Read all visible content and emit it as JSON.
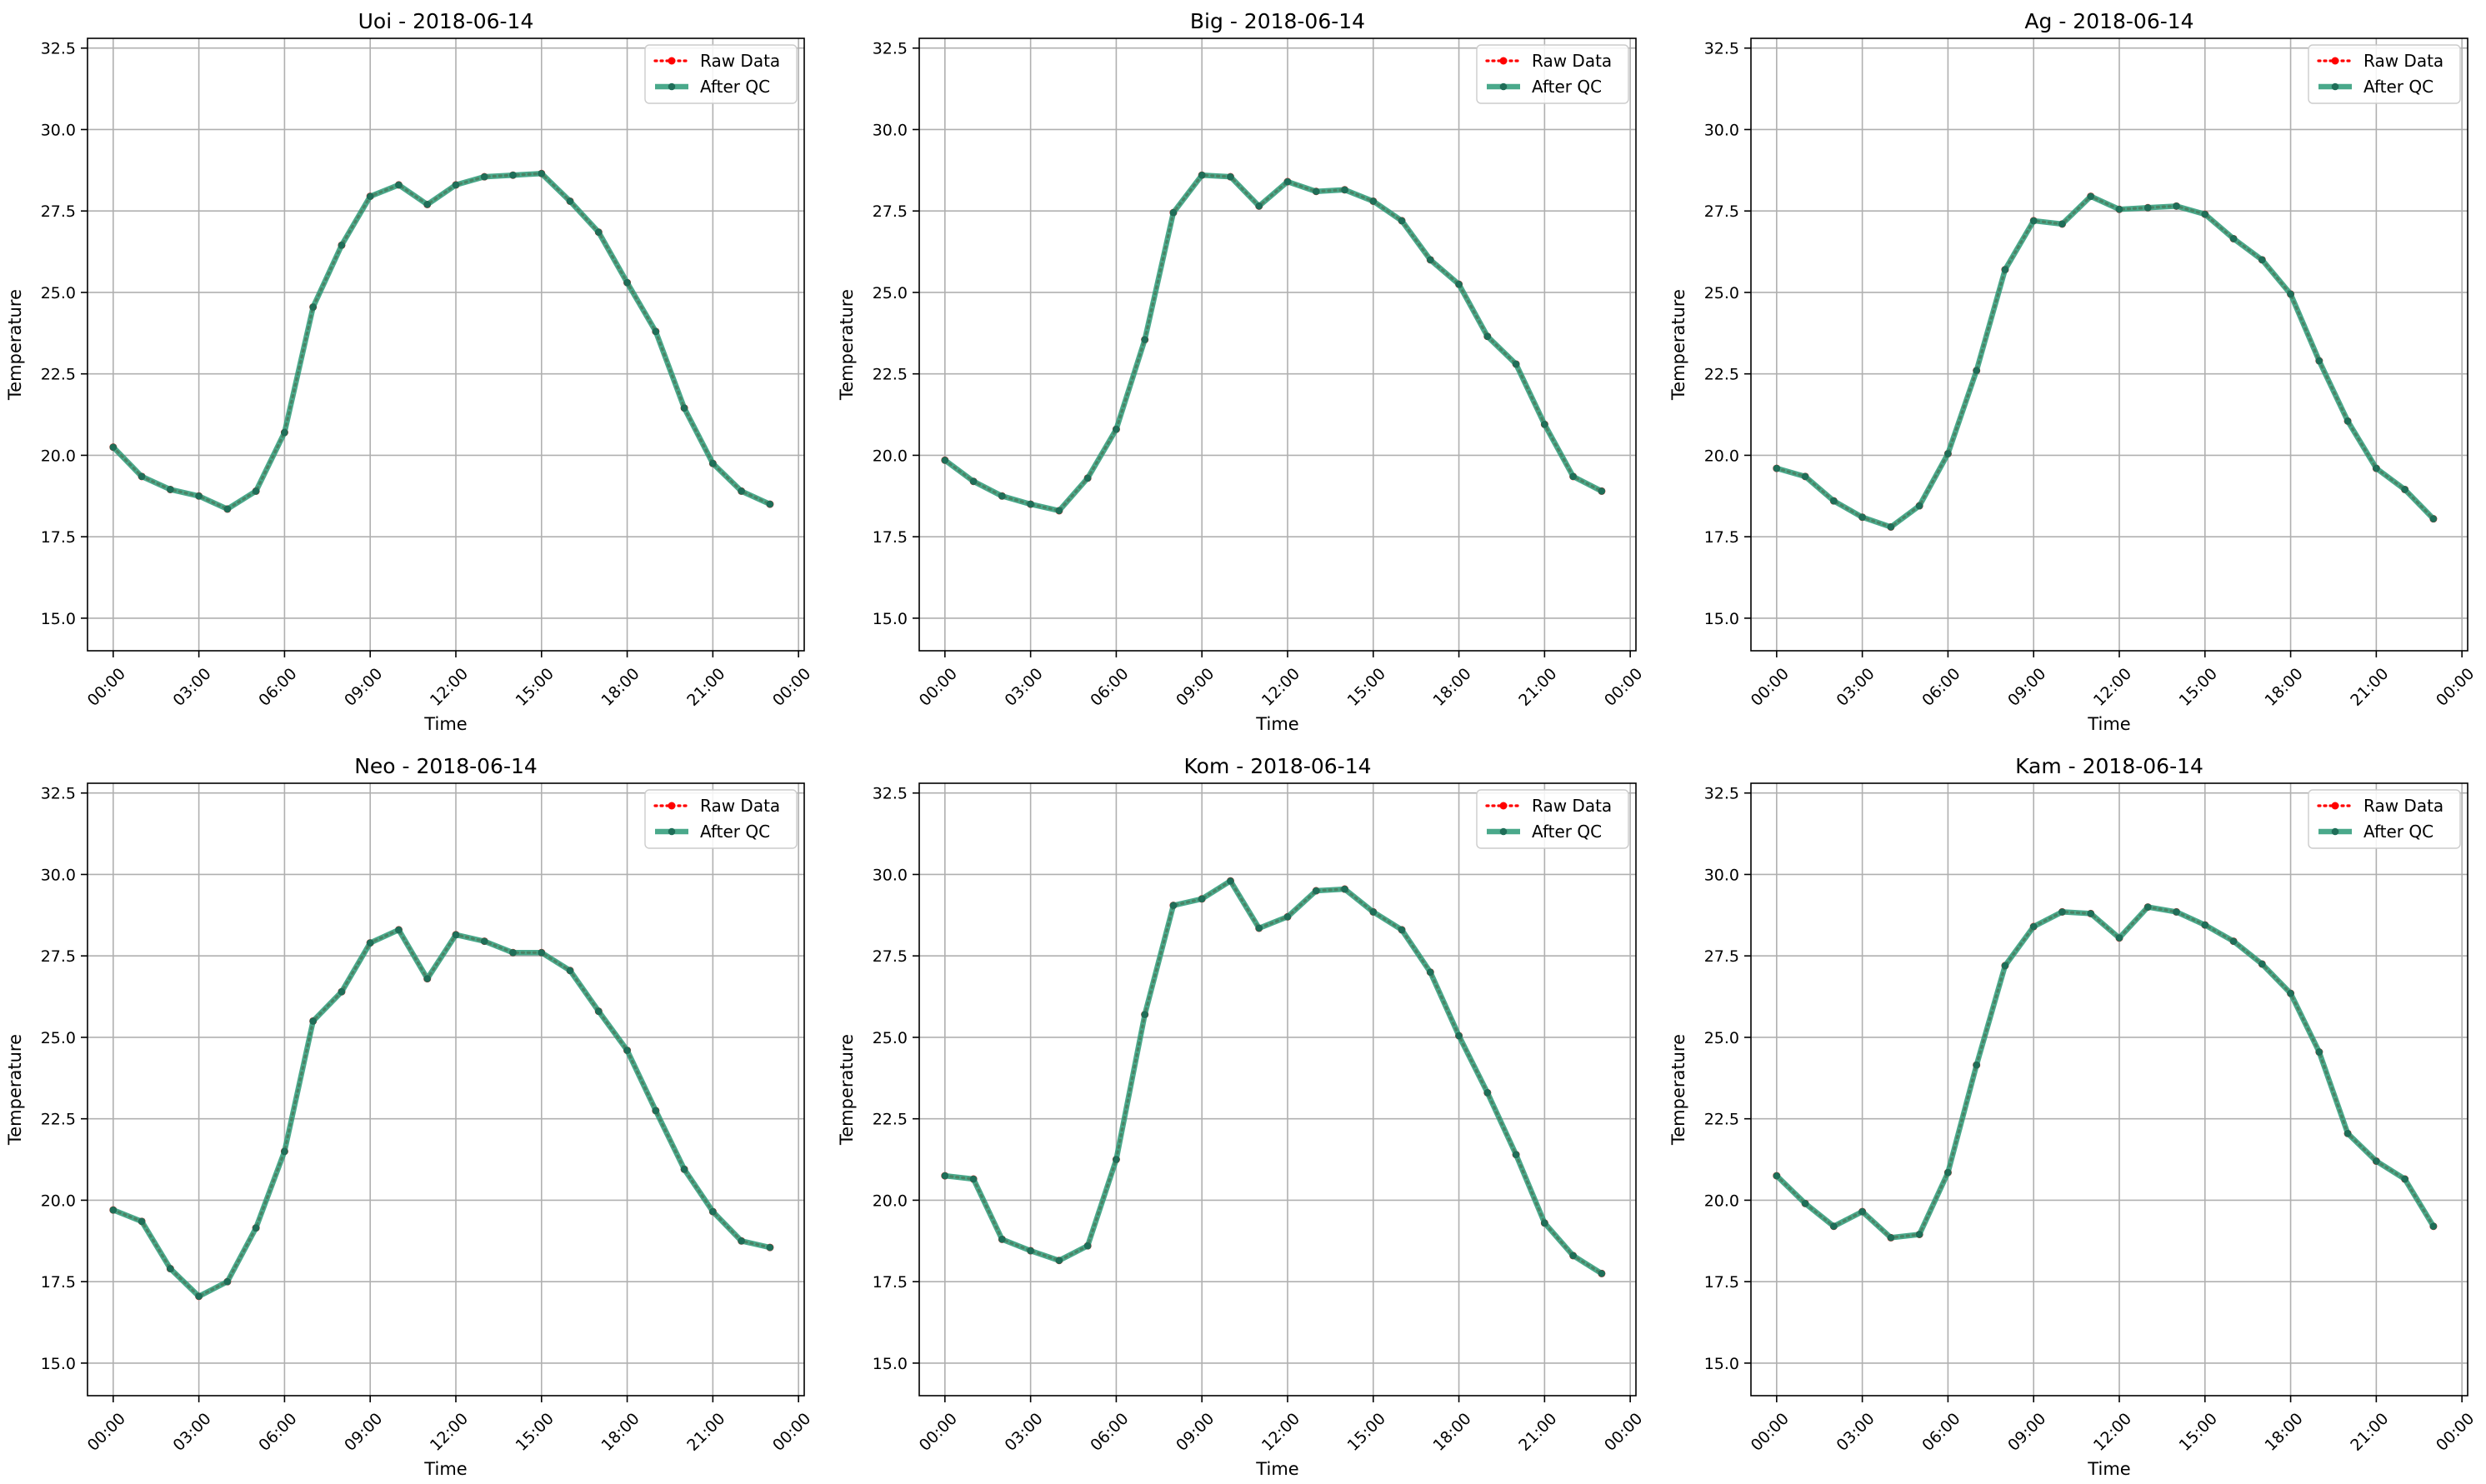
{
  "chart_data": [
    {
      "type": "line",
      "title": "Uoi - 2018-06-14",
      "xlabel": "Time",
      "ylabel": "Temperature",
      "ylim": [
        14.0,
        32.8
      ],
      "xlim": [
        -0.9,
        24.2
      ],
      "x": [
        0,
        1,
        2,
        3,
        4,
        5,
        6,
        7,
        8,
        9,
        10,
        11,
        12,
        13,
        14,
        15,
        16,
        17,
        18,
        19,
        20,
        21,
        22,
        23
      ],
      "x_ticks": [
        0,
        3,
        6,
        9,
        12,
        15,
        18,
        21,
        24
      ],
      "x_tick_labels": [
        "00:00",
        "03:00",
        "06:00",
        "09:00",
        "12:00",
        "15:00",
        "18:00",
        "21:00",
        "00:00"
      ],
      "y_ticks": [
        15.0,
        17.5,
        20.0,
        22.5,
        25.0,
        27.5,
        30.0,
        32.5
      ],
      "y_tick_labels": [
        "15.0",
        "17.5",
        "20.0",
        "22.5",
        "25.0",
        "27.5",
        "30.0",
        "32.5"
      ],
      "grid": true,
      "legend": "top-right",
      "series": [
        {
          "name": "Raw Data",
          "color": "#ff0000",
          "values": [
            20.25,
            19.35,
            18.95,
            18.75,
            18.35,
            18.9,
            20.7,
            24.55,
            26.45,
            27.95,
            28.3,
            27.7,
            28.3,
            28.55,
            28.6,
            28.65,
            27.8,
            26.85,
            25.3,
            23.8,
            21.45,
            19.75,
            18.9,
            18.5
          ]
        },
        {
          "name": "After QC",
          "color": "#2a9a77",
          "values": [
            20.25,
            19.35,
            18.95,
            18.75,
            18.35,
            18.9,
            20.7,
            24.55,
            26.45,
            27.95,
            28.3,
            27.7,
            28.3,
            28.55,
            28.6,
            28.65,
            27.8,
            26.85,
            25.3,
            23.8,
            21.45,
            19.75,
            18.9,
            18.5
          ]
        }
      ]
    },
    {
      "type": "line",
      "title": "Big - 2018-06-14",
      "xlabel": "Time",
      "ylabel": "Temperature",
      "ylim": [
        14.0,
        32.8
      ],
      "xlim": [
        -0.9,
        24.2
      ],
      "x": [
        0,
        1,
        2,
        3,
        4,
        5,
        6,
        7,
        8,
        9,
        10,
        11,
        12,
        13,
        14,
        15,
        16,
        17,
        18,
        19,
        20,
        21,
        22,
        23
      ],
      "x_ticks": [
        0,
        3,
        6,
        9,
        12,
        15,
        18,
        21,
        24
      ],
      "x_tick_labels": [
        "00:00",
        "03:00",
        "06:00",
        "09:00",
        "12:00",
        "15:00",
        "18:00",
        "21:00",
        "00:00"
      ],
      "y_ticks": [
        15.0,
        17.5,
        20.0,
        22.5,
        25.0,
        27.5,
        30.0,
        32.5
      ],
      "y_tick_labels": [
        "15.0",
        "17.5",
        "20.0",
        "22.5",
        "25.0",
        "27.5",
        "30.0",
        "32.5"
      ],
      "grid": true,
      "legend": "top-right",
      "series": [
        {
          "name": "Raw Data",
          "color": "#ff0000",
          "values": [
            19.85,
            19.2,
            18.75,
            18.5,
            18.3,
            19.3,
            20.8,
            23.55,
            27.45,
            28.6,
            28.55,
            27.65,
            28.4,
            28.1,
            28.15,
            27.8,
            27.2,
            26.0,
            25.25,
            23.65,
            22.8,
            20.95,
            19.35,
            18.9
          ]
        },
        {
          "name": "After QC",
          "color": "#2a9a77",
          "values": [
            19.85,
            19.2,
            18.75,
            18.5,
            18.3,
            19.3,
            20.8,
            23.55,
            27.45,
            28.6,
            28.55,
            27.65,
            28.4,
            28.1,
            28.15,
            27.8,
            27.2,
            26.0,
            25.25,
            23.65,
            22.8,
            20.95,
            19.35,
            18.9
          ]
        }
      ]
    },
    {
      "type": "line",
      "title": "Ag - 2018-06-14",
      "xlabel": "Time",
      "ylabel": "Temperature",
      "ylim": [
        14.0,
        32.8
      ],
      "xlim": [
        -0.9,
        24.2
      ],
      "x": [
        0,
        1,
        2,
        3,
        4,
        5,
        6,
        7,
        8,
        9,
        10,
        11,
        12,
        13,
        14,
        15,
        16,
        17,
        18,
        19,
        20,
        21,
        22,
        23
      ],
      "x_ticks": [
        0,
        3,
        6,
        9,
        12,
        15,
        18,
        21,
        24
      ],
      "x_tick_labels": [
        "00:00",
        "03:00",
        "06:00",
        "09:00",
        "12:00",
        "15:00",
        "18:00",
        "21:00",
        "00:00"
      ],
      "y_ticks": [
        15.0,
        17.5,
        20.0,
        22.5,
        25.0,
        27.5,
        30.0,
        32.5
      ],
      "y_tick_labels": [
        "15.0",
        "17.5",
        "20.0",
        "22.5",
        "25.0",
        "27.5",
        "30.0",
        "32.5"
      ],
      "grid": true,
      "legend": "top-right",
      "series": [
        {
          "name": "Raw Data",
          "color": "#ff0000",
          "values": [
            19.6,
            19.35,
            18.6,
            18.1,
            17.8,
            18.45,
            20.05,
            22.6,
            25.7,
            27.2,
            27.1,
            27.95,
            27.55,
            27.6,
            27.65,
            27.4,
            26.65,
            26.0,
            24.95,
            22.9,
            21.05,
            19.6,
            18.95,
            18.05
          ]
        },
        {
          "name": "After QC",
          "color": "#2a9a77",
          "values": [
            19.6,
            19.35,
            18.6,
            18.1,
            17.8,
            18.45,
            20.05,
            22.6,
            25.7,
            27.2,
            27.1,
            27.95,
            27.55,
            27.6,
            27.65,
            27.4,
            26.65,
            26.0,
            24.95,
            22.9,
            21.05,
            19.6,
            18.95,
            18.05
          ]
        }
      ]
    },
    {
      "type": "line",
      "title": "Neo - 2018-06-14",
      "xlabel": "Time",
      "ylabel": "Temperature",
      "ylim": [
        14.0,
        32.8
      ],
      "xlim": [
        -0.9,
        24.2
      ],
      "x": [
        0,
        1,
        2,
        3,
        4,
        5,
        6,
        7,
        8,
        9,
        10,
        11,
        12,
        13,
        14,
        15,
        16,
        17,
        18,
        19,
        20,
        21,
        22,
        23
      ],
      "x_ticks": [
        0,
        3,
        6,
        9,
        12,
        15,
        18,
        21,
        24
      ],
      "x_tick_labels": [
        "00:00",
        "03:00",
        "06:00",
        "09:00",
        "12:00",
        "15:00",
        "18:00",
        "21:00",
        "00:00"
      ],
      "y_ticks": [
        15.0,
        17.5,
        20.0,
        22.5,
        25.0,
        27.5,
        30.0,
        32.5
      ],
      "y_tick_labels": [
        "15.0",
        "17.5",
        "20.0",
        "22.5",
        "25.0",
        "27.5",
        "30.0",
        "32.5"
      ],
      "grid": true,
      "legend": "top-right",
      "series": [
        {
          "name": "Raw Data",
          "color": "#ff0000",
          "values": [
            19.7,
            19.35,
            17.9,
            17.05,
            17.5,
            19.15,
            21.5,
            25.5,
            26.4,
            27.9,
            28.3,
            26.8,
            28.15,
            27.95,
            27.6,
            27.6,
            27.05,
            25.8,
            24.6,
            22.75,
            20.95,
            19.65,
            18.75,
            18.55
          ]
        },
        {
          "name": "After QC",
          "color": "#2a9a77",
          "values": [
            19.7,
            19.35,
            17.9,
            17.05,
            17.5,
            19.15,
            21.5,
            25.5,
            26.4,
            27.9,
            28.3,
            26.8,
            28.15,
            27.95,
            27.6,
            27.6,
            27.05,
            25.8,
            24.6,
            22.75,
            20.95,
            19.65,
            18.75,
            18.55
          ]
        }
      ]
    },
    {
      "type": "line",
      "title": "Kom - 2018-06-14",
      "xlabel": "Time",
      "ylabel": "Temperature",
      "ylim": [
        14.0,
        32.8
      ],
      "xlim": [
        -0.9,
        24.2
      ],
      "x": [
        0,
        1,
        2,
        3,
        4,
        5,
        6,
        7,
        8,
        9,
        10,
        11,
        12,
        13,
        14,
        15,
        16,
        17,
        18,
        19,
        20,
        21,
        22,
        23
      ],
      "x_ticks": [
        0,
        3,
        6,
        9,
        12,
        15,
        18,
        21,
        24
      ],
      "x_tick_labels": [
        "00:00",
        "03:00",
        "06:00",
        "09:00",
        "12:00",
        "15:00",
        "18:00",
        "21:00",
        "00:00"
      ],
      "y_ticks": [
        15.0,
        17.5,
        20.0,
        22.5,
        25.0,
        27.5,
        30.0,
        32.5
      ],
      "y_tick_labels": [
        "15.0",
        "17.5",
        "20.0",
        "22.5",
        "25.0",
        "27.5",
        "30.0",
        "32.5"
      ],
      "grid": true,
      "legend": "top-right",
      "series": [
        {
          "name": "Raw Data",
          "color": "#ff0000",
          "values": [
            20.75,
            20.65,
            18.8,
            18.45,
            18.15,
            18.6,
            21.25,
            25.7,
            29.05,
            29.25,
            29.8,
            28.35,
            28.7,
            29.5,
            29.55,
            28.85,
            28.3,
            27.0,
            25.05,
            23.3,
            21.4,
            19.3,
            18.3,
            17.75
          ]
        },
        {
          "name": "After QC",
          "color": "#2a9a77",
          "values": [
            20.75,
            20.65,
            18.8,
            18.45,
            18.15,
            18.6,
            21.25,
            25.7,
            29.05,
            29.25,
            29.8,
            28.35,
            28.7,
            29.5,
            29.55,
            28.85,
            28.3,
            27.0,
            25.05,
            23.3,
            21.4,
            19.3,
            18.3,
            17.75
          ]
        }
      ]
    },
    {
      "type": "line",
      "title": "Kam - 2018-06-14",
      "xlabel": "Time",
      "ylabel": "Temperature",
      "ylim": [
        14.0,
        32.8
      ],
      "xlim": [
        -0.9,
        24.2
      ],
      "x": [
        0,
        1,
        2,
        3,
        4,
        5,
        6,
        7,
        8,
        9,
        10,
        11,
        12,
        13,
        14,
        15,
        16,
        17,
        18,
        19,
        20,
        21,
        22,
        23
      ],
      "x_ticks": [
        0,
        3,
        6,
        9,
        12,
        15,
        18,
        21,
        24
      ],
      "x_tick_labels": [
        "00:00",
        "03:00",
        "06:00",
        "09:00",
        "12:00",
        "15:00",
        "18:00",
        "21:00",
        "00:00"
      ],
      "y_ticks": [
        15.0,
        17.5,
        20.0,
        22.5,
        25.0,
        27.5,
        30.0,
        32.5
      ],
      "y_tick_labels": [
        "15.0",
        "17.5",
        "20.0",
        "22.5",
        "25.0",
        "27.5",
        "30.0",
        "32.5"
      ],
      "grid": true,
      "legend": "top-right",
      "series": [
        {
          "name": "Raw Data",
          "color": "#ff0000",
          "values": [
            20.75,
            19.9,
            19.2,
            19.65,
            18.85,
            18.95,
            20.85,
            24.15,
            27.2,
            28.4,
            28.85,
            28.8,
            28.05,
            29.0,
            28.85,
            28.45,
            27.95,
            27.25,
            26.35,
            24.55,
            22.05,
            21.2,
            20.65,
            19.2
          ]
        },
        {
          "name": "After QC",
          "color": "#2a9a77",
          "values": [
            20.75,
            19.9,
            19.2,
            19.65,
            18.85,
            18.95,
            20.85,
            24.15,
            27.2,
            28.4,
            28.85,
            28.8,
            28.05,
            29.0,
            28.85,
            28.45,
            27.95,
            27.25,
            26.35,
            24.55,
            22.05,
            21.2,
            20.65,
            19.2
          ]
        }
      ]
    }
  ]
}
